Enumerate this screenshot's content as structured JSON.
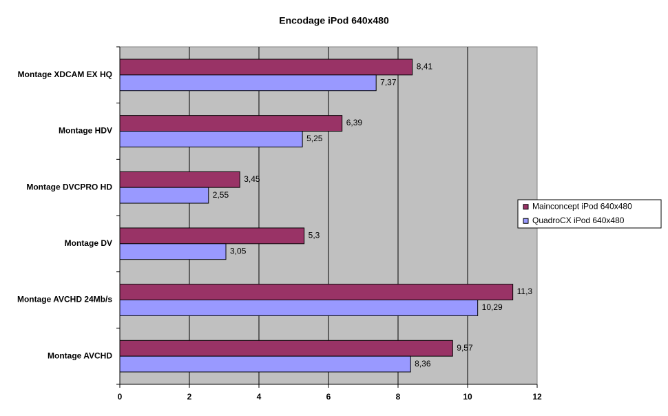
{
  "chart_data": {
    "type": "barh",
    "title": "Encodage iPod 640x480",
    "categories": [
      "Montage XDCAM EX HQ",
      "Montage HDV",
      "Montage DVCPRO HD",
      "Montage DV",
      "Montage AVCHD 24Mb/s",
      "Montage AVCHD"
    ],
    "series": [
      {
        "name": "Mainconcept iPod 640x480",
        "color": "#993366",
        "values": [
          8.41,
          6.39,
          3.45,
          5.3,
          11.3,
          9.57
        ],
        "value_labels": [
          "8,41",
          "6,39",
          "3,45",
          "5,3",
          "11,3",
          "9,57"
        ]
      },
      {
        "name": "QuadroCX iPod 640x480",
        "color": "#9999ff",
        "values": [
          7.37,
          5.25,
          2.55,
          3.05,
          10.29,
          8.36
        ],
        "value_labels": [
          "7,37",
          "5,25",
          "2,55",
          "3,05",
          "10,29",
          "8,36"
        ]
      }
    ],
    "xlim": [
      0,
      12
    ],
    "xticks": [
      0,
      2,
      4,
      6,
      8,
      10,
      12
    ],
    "grid": true,
    "legend": "right"
  }
}
